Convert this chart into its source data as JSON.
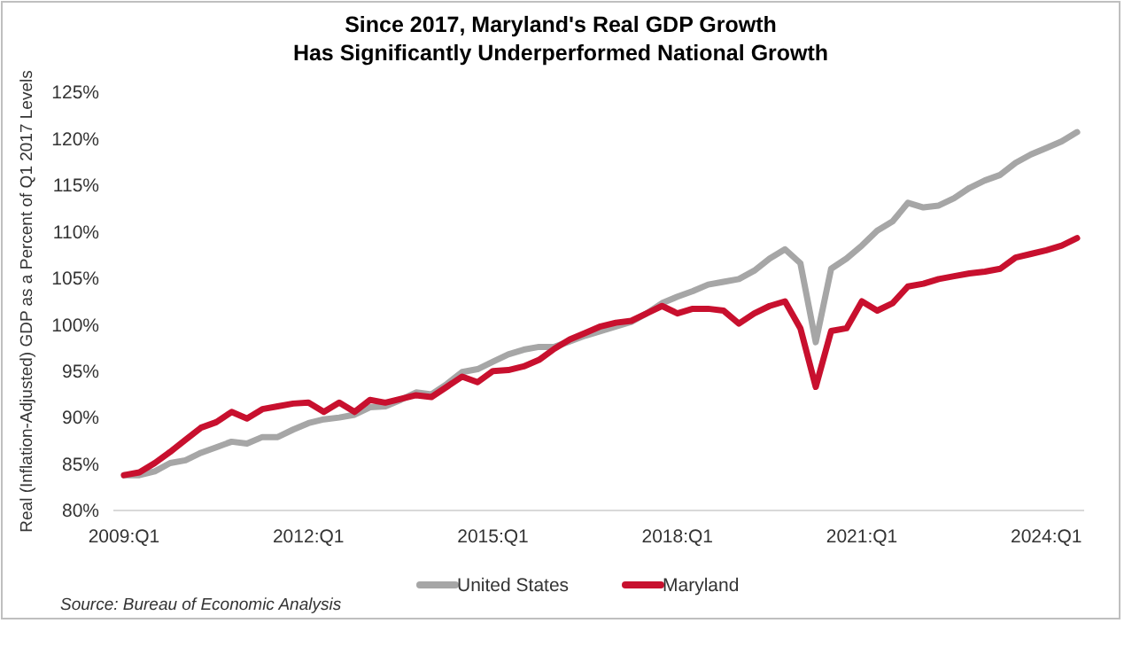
{
  "chart_data": {
    "type": "line",
    "title": "Since 2017, Maryland's Real GDP Growth\nHas Significantly Underperformed National Growth",
    "ylabel": "Real (Inflation-Adjusted) GDP as a Percent of Q1 2017 Levels",
    "categories": [
      "2009:Q1",
      null,
      null,
      null,
      null,
      null,
      null,
      null,
      null,
      null,
      null,
      null,
      "2012:Q1",
      null,
      null,
      null,
      null,
      null,
      null,
      null,
      null,
      null,
      null,
      null,
      "2015:Q1",
      null,
      null,
      null,
      null,
      null,
      null,
      null,
      null,
      null,
      null,
      null,
      "2018:Q1",
      null,
      null,
      null,
      null,
      null,
      null,
      null,
      null,
      null,
      null,
      null,
      "2021:Q1",
      null,
      null,
      null,
      null,
      null,
      null,
      null,
      null,
      null,
      null,
      null,
      "2024:Q1",
      null,
      null
    ],
    "series": [
      {
        "name": "United States",
        "color": "#a6a6a6",
        "values": [
          83.8,
          83.8,
          84.2,
          85.1,
          85.4,
          86.2,
          86.8,
          87.4,
          87.2,
          87.9,
          87.9,
          88.7,
          89.4,
          89.8,
          90.0,
          90.3,
          91.1,
          91.2,
          91.9,
          92.7,
          92.5,
          93.6,
          94.9,
          95.2,
          96.0,
          96.8,
          97.3,
          97.6,
          97.6,
          98.2,
          98.8,
          99.3,
          99.8,
          100.3,
          101.2,
          102.3,
          103.0,
          103.6,
          104.3,
          104.6,
          104.9,
          105.8,
          107.1,
          108.1,
          106.6,
          98.1,
          106.0,
          107.1,
          108.5,
          110.1,
          111.1,
          113.1,
          112.6,
          112.8,
          113.6,
          114.7,
          115.5,
          116.1,
          117.4,
          118.3,
          119.0,
          119.7,
          120.7
        ]
      },
      {
        "name": "Maryland",
        "color": "#c8102e",
        "values": [
          83.8,
          84.1,
          85.1,
          86.3,
          87.6,
          88.9,
          89.5,
          90.6,
          89.9,
          90.9,
          91.2,
          91.5,
          91.6,
          90.6,
          91.6,
          90.6,
          91.9,
          91.6,
          92.0,
          92.4,
          92.2,
          93.3,
          94.4,
          93.8,
          95.0,
          95.1,
          95.5,
          96.2,
          97.4,
          98.4,
          99.1,
          99.8,
          100.2,
          100.4,
          101.2,
          102.0,
          101.2,
          101.7,
          101.7,
          101.5,
          100.1,
          101.2,
          102.0,
          102.5,
          99.6,
          93.3,
          99.3,
          99.6,
          102.5,
          101.5,
          102.3,
          104.1,
          104.4,
          104.9,
          105.2,
          105.5,
          105.7,
          106.0,
          107.2,
          107.6,
          108.0,
          108.5,
          109.3
        ]
      }
    ],
    "ylim": [
      80,
      125
    ],
    "yticks": [
      {
        "value": 80,
        "label": "80%"
      },
      {
        "value": 85,
        "label": "85%"
      },
      {
        "value": 90,
        "label": "90%"
      },
      {
        "value": 95,
        "label": "95%"
      },
      {
        "value": 100,
        "label": "100%"
      },
      {
        "value": 105,
        "label": "105%"
      },
      {
        "value": 110,
        "label": "110%"
      },
      {
        "value": 115,
        "label": "115%"
      },
      {
        "value": 120,
        "label": "120%"
      },
      {
        "value": 125,
        "label": "125%"
      }
    ],
    "grid": false,
    "legend": "bottom",
    "marker": "none",
    "line_style": "solid",
    "annotations": [
      "Source: Bureau of Economic Analysis"
    ]
  }
}
